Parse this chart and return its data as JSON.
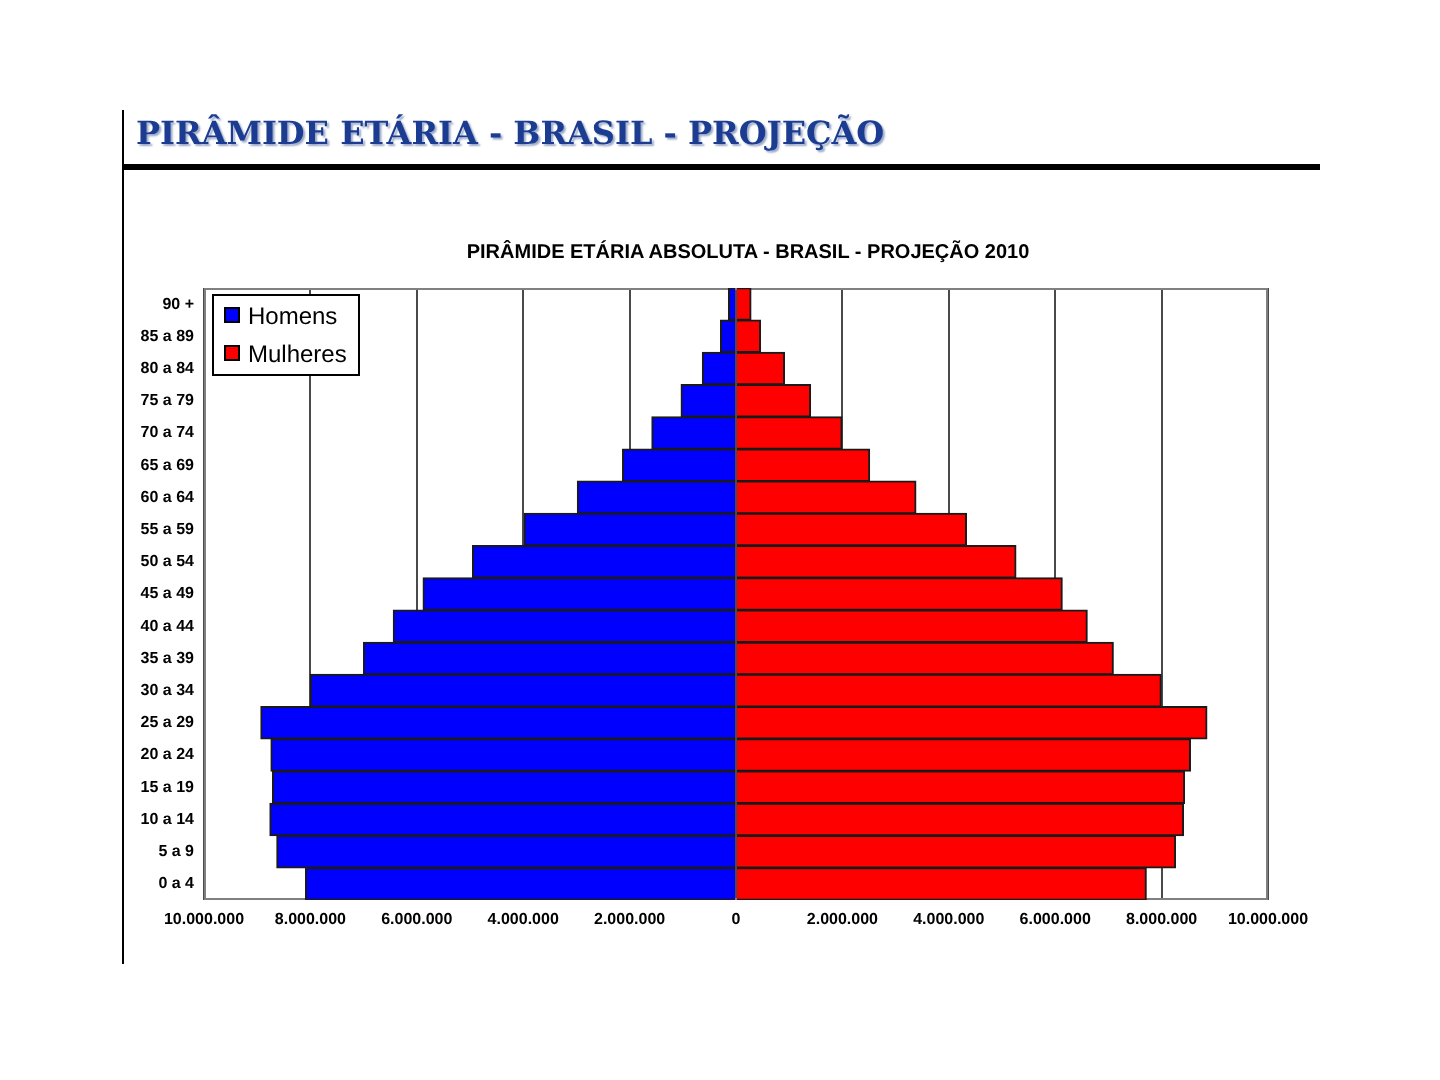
{
  "chart_data": {
    "type": "bar",
    "orientation": "horizontal",
    "stacked": true,
    "title": "PIRÂMIDE ETÁRIA - BRASIL - PROJEÇÃO",
    "subtitle": "PIRÂMIDE ETÁRIA ABSOLUTA - BRASIL - PROJEÇÃO 2010",
    "categories": [
      "90 +",
      "85 a 89",
      "80 a 84",
      "75 a 79",
      "70 a 74",
      "65 a 69",
      "60 a 64",
      "55 a 59",
      "50 a 54",
      "45 a 49",
      "40 a 44",
      "35 a 39",
      "30 a 34",
      "25 a 29",
      "20 a 24",
      "15 a 19",
      "10 a 14",
      "5 a 9",
      "0 a 4"
    ],
    "series": [
      {
        "name": "Homens",
        "color": "#0000ff",
        "values": [
          -140000,
          -290000,
          -630000,
          -1030000,
          -1580000,
          -2130000,
          -2980000,
          -3980000,
          -4950000,
          -5880000,
          -6440000,
          -7000000,
          -8000000,
          -8930000,
          -8740000,
          -8710000,
          -8760000,
          -8630000,
          -8090000
        ]
      },
      {
        "name": "Mulheres",
        "color": "#ff0000",
        "values": [
          280000,
          460000,
          910000,
          1400000,
          1990000,
          2510000,
          3380000,
          4330000,
          5260000,
          6130000,
          6600000,
          7090000,
          7990000,
          8850000,
          8540000,
          8430000,
          8410000,
          8260000,
          7710000
        ]
      }
    ],
    "xlim": [
      -10000000,
      10000000
    ],
    "xticks": [
      {
        "value": -10000000,
        "label": "10.000.000"
      },
      {
        "value": -8000000,
        "label": "8.000.000"
      },
      {
        "value": -6000000,
        "label": "6.000.000"
      },
      {
        "value": -4000000,
        "label": "4.000.000"
      },
      {
        "value": -2000000,
        "label": "2.000.000"
      },
      0,
      {
        "value": 2000000,
        "label": "2.000.000"
      },
      {
        "value": 4000000,
        "label": "4.000.000"
      },
      {
        "value": 6000000,
        "label": "6.000.000"
      },
      {
        "value": 8000000,
        "label": "8.000.000"
      },
      {
        "value": 10000000,
        "label": "10.000.000"
      }
    ],
    "grid": "x",
    "legend": "top left"
  }
}
